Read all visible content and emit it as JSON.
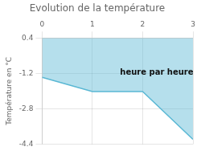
{
  "chart_data": {
    "type": "area",
    "title": "Evolution de la température",
    "y_label": "Température en °C",
    "x": [
      0,
      1,
      2,
      3
    ],
    "values": [
      -1.38,
      -2.02,
      -2.02,
      -4.18
    ],
    "color": "#5ab8d4",
    "xlim": [
      0,
      3
    ],
    "xticks": [
      0,
      1,
      2,
      3
    ],
    "ylim": [
      -4.4,
      0.4
    ],
    "yticks": [
      -4.4,
      -2.8,
      -1.2,
      0.4
    ],
    "grid": true,
    "annotations": [
      {
        "text": "heure par heure",
        "x": 1.55,
        "y": -1.25
      }
    ]
  }
}
